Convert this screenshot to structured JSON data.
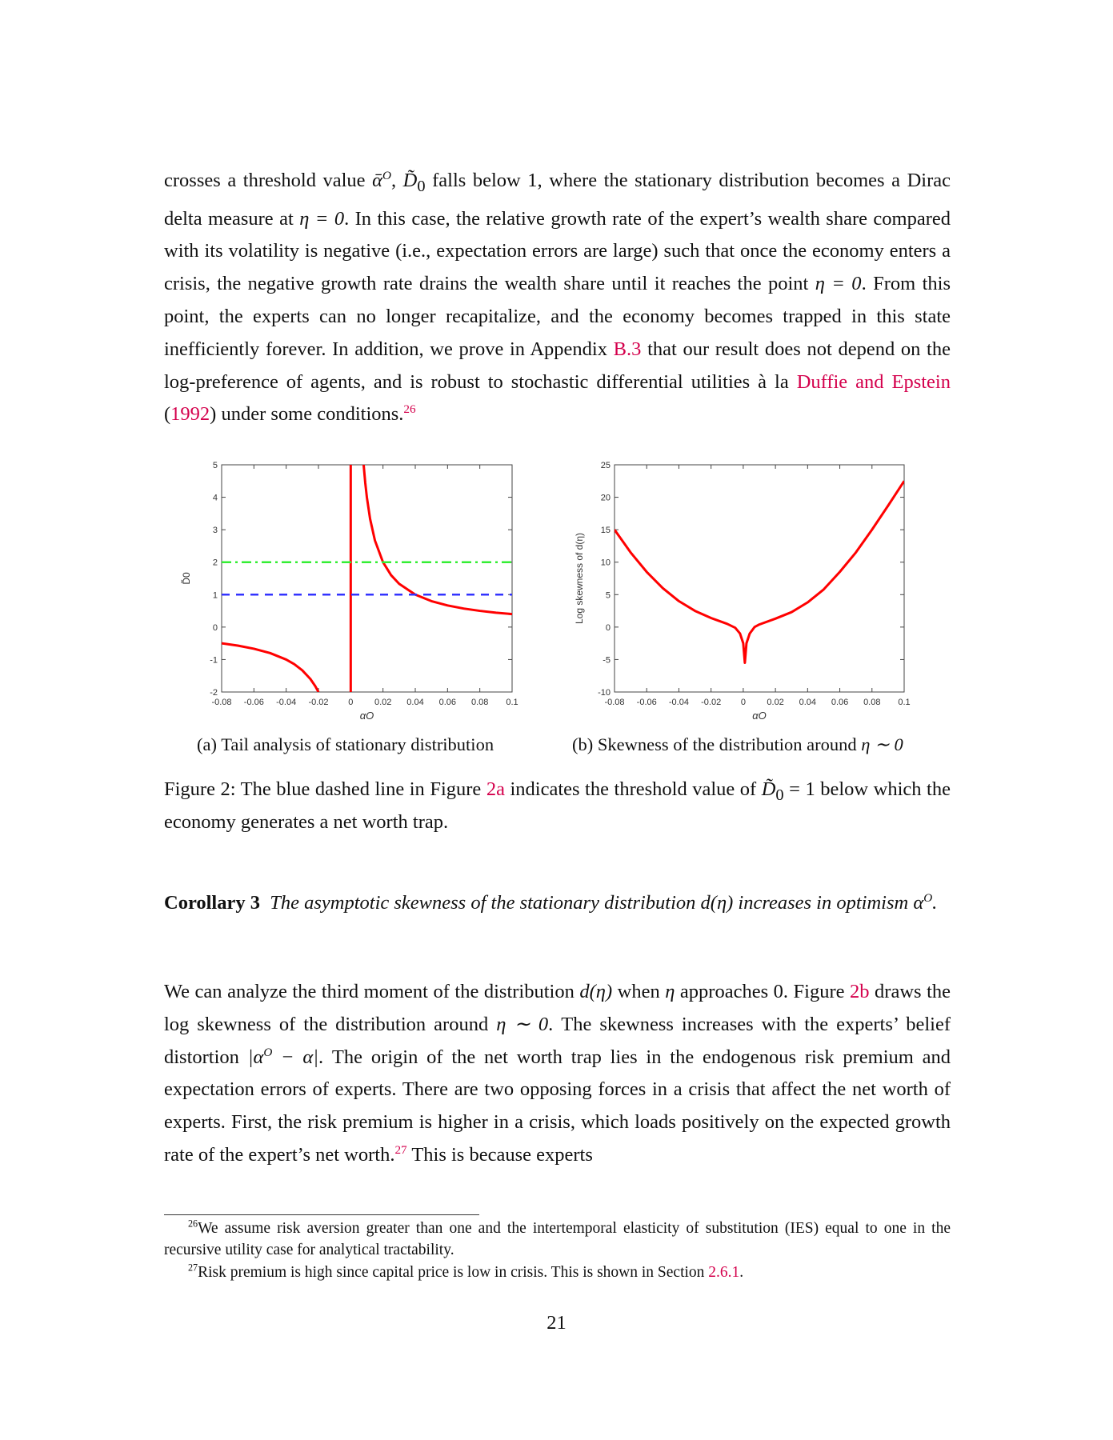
{
  "body": {
    "p1": [
      "crosses a threshold value ",
      "ᾱ",
      "O",
      ", ",
      "D̃",
      "0",
      " falls below 1, where the stationary distribution becomes a Dirac delta measure at ",
      "η = 0",
      ". In this case, the relative growth rate of the expert’s wealth share compared with its volatility is negative (i.e., expectation errors are large) such that once the economy enters a crisis, the negative growth rate drains the wealth share until it reaches the point ",
      "η = 0",
      ". From this point, the experts can no longer recapitalize, and the economy becomes trapped in this state inefficiently forever. In addition, we prove in Appendix ",
      "B.3",
      " that our result does not depend on the log-preference of agents, and is robust to stochastic differential utilities à la ",
      "Duffie and Epstein",
      " (",
      "1992",
      ") under some conditions.",
      "26"
    ],
    "corollary_label": "Corollary 3",
    "corollary_text": [
      "The asymptotic skewness of the stationary distribution ",
      "d(η)",
      " increases in optimism ",
      "α",
      "O",
      "."
    ],
    "p2": [
      "We can analyze the third moment of the distribution ",
      "d(η)",
      " when ",
      "η",
      " approaches 0. Figure ",
      "2b",
      " draws the ",
      "log",
      " skewness of the distribution around ",
      "η ∼ 0",
      ". The skewness increases with the experts’ belief distortion ",
      "|α",
      "O",
      " − α|",
      ". The origin of the net worth trap lies in the endogenous risk premium and expectation errors of experts. There are two opposing forces in a crisis that affect the net worth of experts. First, the risk premium is higher in a crisis, which loads positively on the expected growth rate of the expert’s net worth.",
      "27",
      " This is because experts"
    ]
  },
  "figure": {
    "subcaption_a": "(a) Tail analysis of stationary distribution",
    "subcaption_b": [
      "(b) Skewness of the distribution around ",
      "η ∼ 0"
    ],
    "caption": [
      "Figure 2: The blue dashed line in Figure ",
      "2a",
      " indicates the threshold value of ",
      "D̃",
      "0",
      " = 1",
      " below which the economy generates a net worth trap."
    ]
  },
  "footnotes": [
    {
      "mark": "26",
      "text": "We assume risk aversion greater than one and the intertemporal elasticity of substitution (IES) equal to one in the recursive utility case for analytical tractability."
    },
    {
      "mark": "27",
      "text": "Risk premium is high since capital price is low in crisis. This is shown in Section ",
      "link": "2.6.1",
      "end": "."
    }
  ],
  "page_number": "21",
  "colors": {
    "link": "#d4004c",
    "curve": "#ff0000",
    "threshold_blue": "#3333ff",
    "threshold_green": "#33ee33"
  },
  "chart_data": [
    {
      "type": "line",
      "xlabel": "αO",
      "ylabel": "D̃0",
      "xlim": [
        -0.08,
        0.1
      ],
      "ylim": [
        -2,
        5
      ],
      "xticks": [
        "-0.08",
        "-0.06",
        "-0.04",
        "-0.02",
        "0",
        "0.02",
        "0.04",
        "0.06",
        "0.08",
        "0.1"
      ],
      "yticks": [
        "-2",
        "-1",
        "0",
        "1",
        "2",
        "3",
        "4",
        "5"
      ],
      "series": [
        {
          "style": "solid-red",
          "x": [
            -0.08,
            -0.07,
            -0.06,
            -0.05,
            -0.04,
            -0.035,
            -0.03,
            -0.025,
            -0.022,
            -0.02
          ],
          "y": [
            -0.5,
            -0.571,
            -0.667,
            -0.8,
            -1,
            -1.143,
            -1.333,
            -1.6,
            -1.818,
            -2
          ]
        },
        {
          "style": "solid-red",
          "x": [
            0.008,
            0.009,
            0.01,
            0.012,
            0.015,
            0.02,
            0.025,
            0.03,
            0.04,
            0.05,
            0.06,
            0.07,
            0.08,
            0.09,
            0.1
          ],
          "y": [
            5,
            4.444,
            4,
            3.333,
            2.667,
            2,
            1.6,
            1.333,
            1,
            0.8,
            0.667,
            0.571,
            0.5,
            0.444,
            0.4
          ]
        },
        {
          "style": "solid-red-vertical",
          "x": [
            0,
            0
          ],
          "y": [
            -2,
            5
          ]
        },
        {
          "style": "dashed-blue",
          "x": [
            -0.08,
            0.1
          ],
          "y": [
            1,
            1
          ]
        },
        {
          "style": "dashdot-green",
          "x": [
            -0.08,
            0.1
          ],
          "y": [
            2,
            2
          ]
        }
      ]
    },
    {
      "type": "line",
      "xlabel": "αO",
      "ylabel": "Log skewness of d(η)",
      "xlim": [
        -0.08,
        0.1
      ],
      "ylim": [
        -10,
        25
      ],
      "xticks": [
        "-0.08",
        "-0.06",
        "-0.04",
        "-0.02",
        "0",
        "0.02",
        "0.04",
        "0.06",
        "0.08",
        "0.1"
      ],
      "yticks": [
        "-10",
        "-5",
        "0",
        "5",
        "10",
        "15",
        "20",
        "25"
      ],
      "series": [
        {
          "style": "solid-red",
          "x": [
            -0.08,
            -0.07,
            -0.06,
            -0.05,
            -0.04,
            -0.03,
            -0.02,
            -0.01,
            -0.005,
            -0.002,
            0,
            0.001,
            0.002,
            0.004,
            0.007,
            0.01,
            0.02,
            0.03,
            0.04,
            0.05,
            0.06,
            0.07,
            0.08,
            0.09,
            0.1
          ],
          "y": [
            15,
            11.5,
            8.5,
            6,
            4,
            2.5,
            1.4,
            0.5,
            -0.1,
            -1,
            -2.5,
            -5.5,
            -2.5,
            -1,
            0,
            0.4,
            1.3,
            2.3,
            3.8,
            5.8,
            8.5,
            11.5,
            15,
            18.7,
            22.5
          ]
        }
      ]
    }
  ]
}
